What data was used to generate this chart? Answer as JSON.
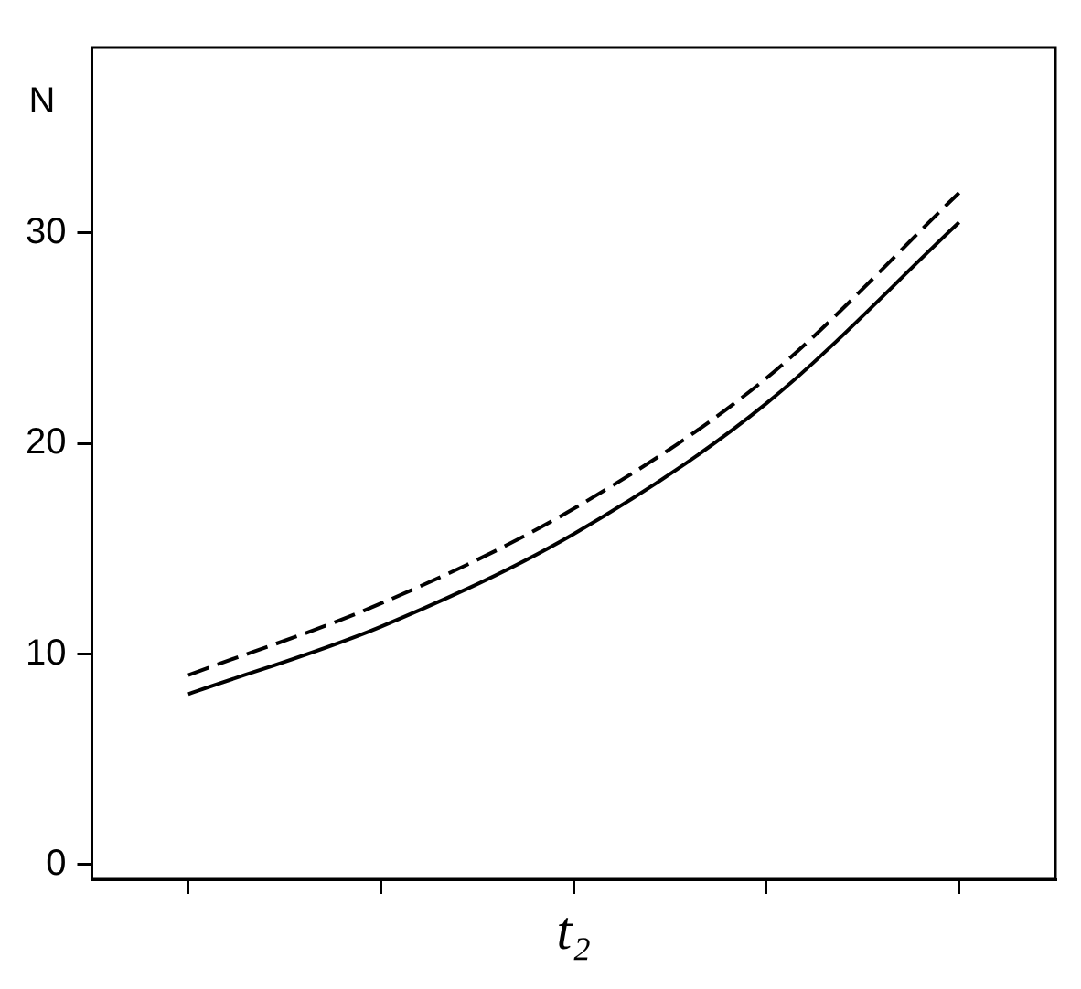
{
  "chart_data": {
    "type": "line",
    "ylabel": "N",
    "xlabel": "t₂",
    "categories": [
      null,
      null,
      null,
      null,
      null
    ],
    "series": [
      {
        "color": "#000000",
        "line_style": "solid",
        "values": [
          8.1,
          11.3,
          15.7,
          21.9,
          30.5
        ]
      },
      {
        "color": "#000000",
        "line_style": "dashed",
        "values": [
          9.0,
          12.4,
          16.9,
          23.1,
          31.9
        ]
      }
    ],
    "ylim": [
      -0.7,
      38.8
    ],
    "yticks": [
      0,
      10,
      20,
      30
    ],
    "grid": false,
    "legend": false,
    "marker": "none"
  }
}
